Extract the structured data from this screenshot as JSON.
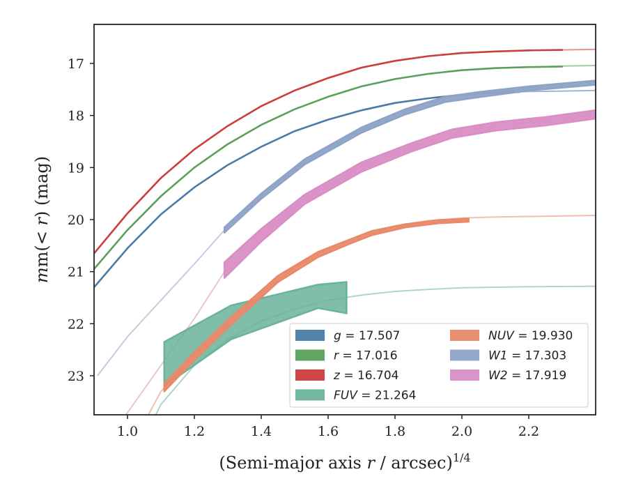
{
  "chart_data": {
    "type": "line",
    "xlabel_prefix": "(Semi-major axis ",
    "xlabel_var": "r",
    "xlabel_mid": " / arcsec)",
    "xlabel_sup": "1/4",
    "ylabel_prefix": "m(< ",
    "ylabel_var": "r",
    "ylabel_suffix": ") (mag)",
    "xlim": [
      0.9,
      2.4
    ],
    "ylim": [
      23.75,
      16.25
    ],
    "y_inverted": true,
    "xticks": [
      "1.0",
      "1.2",
      "1.4",
      "1.6",
      "1.8",
      "2.0",
      "2.2"
    ],
    "xtick_values": [
      1.0,
      1.2,
      1.4,
      1.6,
      1.8,
      2.0,
      2.2
    ],
    "yticks": [
      "17",
      "18",
      "19",
      "20",
      "21",
      "22",
      "23"
    ],
    "ytick_values": [
      17,
      18,
      19,
      20,
      21,
      22,
      23
    ],
    "grid": false,
    "legend_position": "lower-right",
    "series": [
      {
        "name": "g = 17.507",
        "label_var": "g",
        "label_value": "17.507",
        "color": "#4a7ba7",
        "thin": [
          [
            0.9,
            21.3
          ],
          [
            1.0,
            20.55
          ],
          [
            1.1,
            19.9
          ],
          [
            1.2,
            19.38
          ],
          [
            1.3,
            18.95
          ],
          [
            1.4,
            18.6
          ],
          [
            1.5,
            18.3
          ],
          [
            1.6,
            18.08
          ],
          [
            1.7,
            17.9
          ],
          [
            1.8,
            17.76
          ],
          [
            1.9,
            17.67
          ],
          [
            2.0,
            17.6
          ],
          [
            2.1,
            17.56
          ],
          [
            2.2,
            17.54
          ],
          [
            2.3,
            17.53
          ],
          [
            2.4,
            17.52
          ]
        ],
        "band": [
          [
            0.9,
            21.3,
            21.3
          ],
          [
            1.0,
            20.55,
            20.55
          ],
          [
            1.1,
            19.9,
            19.9
          ],
          [
            1.2,
            19.38,
            19.38
          ],
          [
            1.3,
            18.95,
            18.95
          ],
          [
            1.4,
            18.6,
            18.6
          ],
          [
            1.5,
            18.3,
            18.3
          ],
          [
            1.6,
            18.08,
            18.08
          ],
          [
            1.7,
            17.9,
            17.9
          ],
          [
            1.8,
            17.76,
            17.76
          ],
          [
            1.9,
            17.67,
            17.67
          ],
          [
            2.0,
            17.6,
            17.6
          ],
          [
            2.1,
            17.56,
            17.56
          ],
          [
            2.17,
            17.55,
            17.55
          ]
        ]
      },
      {
        "name": "r = 17.016",
        "label_var": "r",
        "label_value": "17.016",
        "color": "#5aa05a",
        "thin": [
          [
            0.9,
            20.95
          ],
          [
            1.0,
            20.2
          ],
          [
            1.1,
            19.55
          ],
          [
            1.2,
            19.0
          ],
          [
            1.3,
            18.55
          ],
          [
            1.4,
            18.18
          ],
          [
            1.5,
            17.88
          ],
          [
            1.6,
            17.64
          ],
          [
            1.7,
            17.44
          ],
          [
            1.8,
            17.3
          ],
          [
            1.9,
            17.2
          ],
          [
            2.0,
            17.13
          ],
          [
            2.1,
            17.09
          ],
          [
            2.2,
            17.07
          ],
          [
            2.3,
            17.05
          ],
          [
            2.4,
            17.04
          ]
        ],
        "band": [
          [
            0.9,
            20.95,
            20.95
          ],
          [
            1.0,
            20.2,
            20.2
          ],
          [
            1.1,
            19.55,
            19.55
          ],
          [
            1.2,
            19.0,
            19.0
          ],
          [
            1.3,
            18.55,
            18.55
          ],
          [
            1.4,
            18.18,
            18.18
          ],
          [
            1.5,
            17.88,
            17.88
          ],
          [
            1.6,
            17.64,
            17.64
          ],
          [
            1.7,
            17.44,
            17.44
          ],
          [
            1.8,
            17.3,
            17.3
          ],
          [
            1.9,
            17.2,
            17.2
          ],
          [
            2.0,
            17.13,
            17.13
          ],
          [
            2.1,
            17.09,
            17.09
          ],
          [
            2.2,
            17.07,
            17.07
          ],
          [
            2.3,
            17.06,
            17.06
          ]
        ]
      },
      {
        "name": "z = 16.704",
        "label_var": "z",
        "label_value": "16.704",
        "color": "#cc3d3d",
        "thin": [
          [
            0.9,
            20.65
          ],
          [
            1.0,
            19.88
          ],
          [
            1.1,
            19.2
          ],
          [
            1.2,
            18.65
          ],
          [
            1.3,
            18.2
          ],
          [
            1.4,
            17.82
          ],
          [
            1.5,
            17.52
          ],
          [
            1.6,
            17.28
          ],
          [
            1.7,
            17.08
          ],
          [
            1.8,
            16.95
          ],
          [
            1.9,
            16.86
          ],
          [
            2.0,
            16.8
          ],
          [
            2.1,
            16.77
          ],
          [
            2.2,
            16.75
          ],
          [
            2.3,
            16.74
          ],
          [
            2.4,
            16.73
          ]
        ],
        "band": [
          [
            0.9,
            20.65,
            20.65
          ],
          [
            1.0,
            19.88,
            19.88
          ],
          [
            1.1,
            19.2,
            19.2
          ],
          [
            1.2,
            18.65,
            18.65
          ],
          [
            1.3,
            18.2,
            18.2
          ],
          [
            1.4,
            17.82,
            17.82
          ],
          [
            1.5,
            17.52,
            17.52
          ],
          [
            1.6,
            17.28,
            17.28
          ],
          [
            1.7,
            17.08,
            17.08
          ],
          [
            1.8,
            16.95,
            16.95
          ],
          [
            1.9,
            16.86,
            16.86
          ],
          [
            2.0,
            16.8,
            16.8
          ],
          [
            2.1,
            16.77,
            16.77
          ],
          [
            2.2,
            16.75,
            16.75
          ],
          [
            2.3,
            16.74,
            16.74
          ]
        ]
      },
      {
        "name": "FUV = 21.264",
        "label_var": "FUV",
        "label_value": "21.264",
        "color": "#6bb39a",
        "thin": [
          [
            1.05,
            24.2
          ],
          [
            1.1,
            23.55
          ],
          [
            1.2,
            22.8
          ],
          [
            1.3,
            22.3
          ],
          [
            1.4,
            21.95
          ],
          [
            1.5,
            21.72
          ],
          [
            1.6,
            21.55
          ],
          [
            1.7,
            21.45
          ],
          [
            1.8,
            21.38
          ],
          [
            1.9,
            21.34
          ],
          [
            2.0,
            21.31
          ],
          [
            2.2,
            21.29
          ],
          [
            2.4,
            21.28
          ]
        ],
        "band": [
          [
            1.11,
            22.35,
            23.2
          ],
          [
            1.31,
            21.65,
            22.3
          ],
          [
            1.57,
            21.25,
            21.7
          ],
          [
            1.655,
            21.2,
            21.8
          ]
        ]
      },
      {
        "name": "NUV = 19.930",
        "label_var": "NUV",
        "label_value": "19.930",
        "color": "#e8896a",
        "thin": [
          [
            1.05,
            23.9
          ],
          [
            1.1,
            23.3
          ],
          [
            1.2,
            22.6
          ],
          [
            1.3,
            22.0
          ],
          [
            1.4,
            21.4
          ],
          [
            1.5,
            20.92
          ],
          [
            1.6,
            20.55
          ],
          [
            1.7,
            20.3
          ],
          [
            1.8,
            20.12
          ],
          [
            1.9,
            20.02
          ],
          [
            2.0,
            19.97
          ],
          [
            2.1,
            19.95
          ],
          [
            2.2,
            19.94
          ],
          [
            2.3,
            19.93
          ],
          [
            2.4,
            19.92
          ]
        ],
        "band": [
          [
            1.11,
            23.15,
            23.3
          ],
          [
            1.2,
            22.55,
            22.7
          ],
          [
            1.3,
            21.93,
            22.08
          ],
          [
            1.45,
            21.08,
            21.2
          ],
          [
            1.57,
            20.62,
            20.72
          ],
          [
            1.67,
            20.37,
            20.45
          ],
          [
            1.73,
            20.22,
            20.3
          ],
          [
            1.83,
            20.09,
            20.15
          ],
          [
            1.93,
            20.01,
            20.07
          ],
          [
            2.02,
            19.98,
            20.04
          ]
        ]
      },
      {
        "name": "W1 = 17.303",
        "label_var": "W1",
        "label_value": "17.303",
        "color": "#8fa3c7",
        "thin": [
          [
            0.91,
            23.0
          ],
          [
            1.0,
            22.25
          ],
          [
            1.1,
            21.55
          ],
          [
            1.2,
            20.85
          ],
          [
            1.29,
            20.2
          ],
          [
            1.4,
            19.55
          ],
          [
            1.53,
            18.88
          ],
          [
            1.7,
            18.28
          ],
          [
            1.83,
            17.92
          ],
          [
            1.95,
            17.68
          ],
          [
            2.05,
            17.6
          ],
          [
            2.2,
            17.48
          ],
          [
            2.4,
            17.36
          ]
        ],
        "band": [
          [
            1.29,
            20.15,
            20.25
          ],
          [
            1.4,
            19.5,
            19.6
          ],
          [
            1.53,
            18.84,
            18.94
          ],
          [
            1.7,
            18.23,
            18.33
          ],
          [
            1.83,
            17.88,
            17.98
          ],
          [
            1.95,
            17.64,
            17.74
          ],
          [
            2.05,
            17.55,
            17.65
          ],
          [
            2.2,
            17.44,
            17.52
          ],
          [
            2.4,
            17.33,
            17.41
          ]
        ]
      },
      {
        "name": "W2 = 17.919",
        "label_var": "W2",
        "label_value": "17.919",
        "color": "#d98ec4",
        "thin": [
          [
            0.99,
            23.8
          ],
          [
            1.1,
            22.8
          ],
          [
            1.2,
            21.9
          ],
          [
            1.29,
            21.0
          ],
          [
            1.4,
            20.3
          ],
          [
            1.53,
            19.6
          ],
          [
            1.7,
            18.98
          ],
          [
            1.85,
            18.6
          ],
          [
            1.97,
            18.35
          ],
          [
            2.1,
            18.2
          ],
          [
            2.25,
            18.1
          ],
          [
            2.4,
            17.98
          ]
        ],
        "band": [
          [
            1.29,
            20.82,
            21.12
          ],
          [
            1.4,
            20.18,
            20.42
          ],
          [
            1.53,
            19.52,
            19.7
          ],
          [
            1.7,
            18.9,
            19.08
          ],
          [
            1.85,
            18.53,
            18.69
          ],
          [
            1.97,
            18.27,
            18.43
          ],
          [
            2.1,
            18.13,
            18.29
          ],
          [
            2.25,
            18.03,
            18.19
          ],
          [
            2.4,
            17.9,
            18.06
          ]
        ]
      }
    ]
  }
}
